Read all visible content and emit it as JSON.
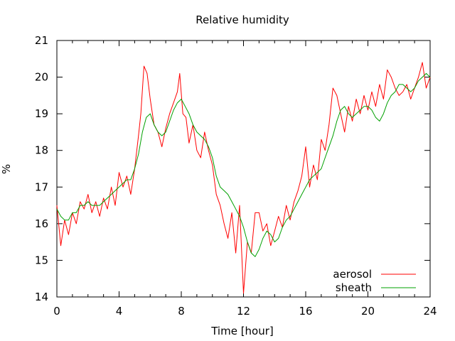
{
  "chart_data": {
    "type": "line",
    "title": "Relative humidity",
    "xlabel": "Time [hour]",
    "ylabel": "%",
    "xlim": [
      0,
      24
    ],
    "ylim": [
      14,
      21
    ],
    "x_ticks": [
      0,
      4,
      8,
      12,
      16,
      20,
      24
    ],
    "y_ticks": [
      14,
      15,
      16,
      17,
      18,
      19,
      20,
      21
    ],
    "grid": false,
    "legend_position": "bottom-right",
    "series": [
      {
        "name": "aerosol",
        "color": "#ff0000",
        "x": [
          0.0,
          0.25,
          0.5,
          0.75,
          1.0,
          1.25,
          1.5,
          1.75,
          2.0,
          2.25,
          2.5,
          2.75,
          3.0,
          3.25,
          3.5,
          3.75,
          4.0,
          4.25,
          4.5,
          4.75,
          5.0,
          5.25,
          5.4,
          5.6,
          5.8,
          6.0,
          6.25,
          6.5,
          6.75,
          7.0,
          7.25,
          7.5,
          7.75,
          7.9,
          8.1,
          8.3,
          8.5,
          8.75,
          9.0,
          9.25,
          9.5,
          9.75,
          10.0,
          10.25,
          10.5,
          10.75,
          11.0,
          11.25,
          11.5,
          11.75,
          12.0,
          12.25,
          12.5,
          12.75,
          13.0,
          13.25,
          13.5,
          13.75,
          14.0,
          14.25,
          14.5,
          14.75,
          15.0,
          15.25,
          15.5,
          15.75,
          16.0,
          16.25,
          16.5,
          16.75,
          17.0,
          17.25,
          17.5,
          17.75,
          18.0,
          18.25,
          18.5,
          18.75,
          19.0,
          19.25,
          19.5,
          19.75,
          20.0,
          20.25,
          20.5,
          20.75,
          21.0,
          21.25,
          21.5,
          21.75,
          22.0,
          22.25,
          22.5,
          22.75,
          23.0,
          23.25,
          23.5,
          23.75,
          24.0
        ],
        "values": [
          16.5,
          15.4,
          16.1,
          15.7,
          16.3,
          16.0,
          16.6,
          16.4,
          16.8,
          16.3,
          16.6,
          16.2,
          16.7,
          16.4,
          17.0,
          16.5,
          17.4,
          17.0,
          17.3,
          16.8,
          17.5,
          18.4,
          19.0,
          20.3,
          20.1,
          19.4,
          18.7,
          18.5,
          18.1,
          18.6,
          19.0,
          19.3,
          19.6,
          20.1,
          19.0,
          18.9,
          18.2,
          18.7,
          18.0,
          17.8,
          18.5,
          18.0,
          17.6,
          16.8,
          16.5,
          16.0,
          15.6,
          16.3,
          15.2,
          16.5,
          14.1,
          15.5,
          15.2,
          16.3,
          16.3,
          15.8,
          16.0,
          15.4,
          15.8,
          16.2,
          15.9,
          16.5,
          16.1,
          16.6,
          16.9,
          17.3,
          18.1,
          17.0,
          17.6,
          17.2,
          18.3,
          18.0,
          18.7,
          19.7,
          19.5,
          19.0,
          18.5,
          19.2,
          18.8,
          19.4,
          19.0,
          19.5,
          19.1,
          19.6,
          19.2,
          19.8,
          19.4,
          20.2,
          20.0,
          19.7,
          19.5,
          19.6,
          19.8,
          19.4,
          19.7,
          20.0,
          20.4,
          19.7,
          20.0
        ]
      },
      {
        "name": "sheath",
        "color": "#00a000",
        "x": [
          0.0,
          0.25,
          0.5,
          0.75,
          1.0,
          1.25,
          1.5,
          1.75,
          2.0,
          2.25,
          2.5,
          2.75,
          3.0,
          3.25,
          3.5,
          3.75,
          4.0,
          4.25,
          4.5,
          4.75,
          5.0,
          5.25,
          5.5,
          5.75,
          6.0,
          6.25,
          6.5,
          6.75,
          7.0,
          7.25,
          7.5,
          7.75,
          8.0,
          8.25,
          8.5,
          8.75,
          9.0,
          9.25,
          9.5,
          9.75,
          10.0,
          10.25,
          10.5,
          10.75,
          11.0,
          11.25,
          11.5,
          11.75,
          12.0,
          12.25,
          12.5,
          12.75,
          13.0,
          13.25,
          13.5,
          13.75,
          14.0,
          14.25,
          14.5,
          14.75,
          15.0,
          15.25,
          15.5,
          15.75,
          16.0,
          16.25,
          16.5,
          16.75,
          17.0,
          17.25,
          17.5,
          17.75,
          18.0,
          18.25,
          18.5,
          18.75,
          19.0,
          19.25,
          19.5,
          19.75,
          20.0,
          20.25,
          20.5,
          20.75,
          21.0,
          21.25,
          21.5,
          21.75,
          22.0,
          22.25,
          22.5,
          22.75,
          23.0,
          23.25,
          23.5,
          23.75,
          24.0
        ],
        "values": [
          16.4,
          16.2,
          16.1,
          16.1,
          16.3,
          16.3,
          16.5,
          16.5,
          16.6,
          16.5,
          16.5,
          16.5,
          16.6,
          16.7,
          16.8,
          16.9,
          17.0,
          17.1,
          17.2,
          17.2,
          17.5,
          17.9,
          18.5,
          18.9,
          19.0,
          18.7,
          18.5,
          18.4,
          18.5,
          18.8,
          19.1,
          19.3,
          19.4,
          19.2,
          19.0,
          18.7,
          18.5,
          18.4,
          18.3,
          18.1,
          17.8,
          17.3,
          17.0,
          16.9,
          16.8,
          16.6,
          16.4,
          16.2,
          15.9,
          15.5,
          15.2,
          15.1,
          15.3,
          15.6,
          15.8,
          15.7,
          15.5,
          15.6,
          15.9,
          16.1,
          16.2,
          16.4,
          16.6,
          16.8,
          17.0,
          17.2,
          17.3,
          17.4,
          17.5,
          17.8,
          18.1,
          18.4,
          18.8,
          19.1,
          19.2,
          19.0,
          18.9,
          19.0,
          19.1,
          19.2,
          19.2,
          19.1,
          18.9,
          18.8,
          19.0,
          19.3,
          19.5,
          19.6,
          19.8,
          19.8,
          19.7,
          19.6,
          19.7,
          19.9,
          20.0,
          20.1,
          20.0
        ]
      }
    ]
  }
}
